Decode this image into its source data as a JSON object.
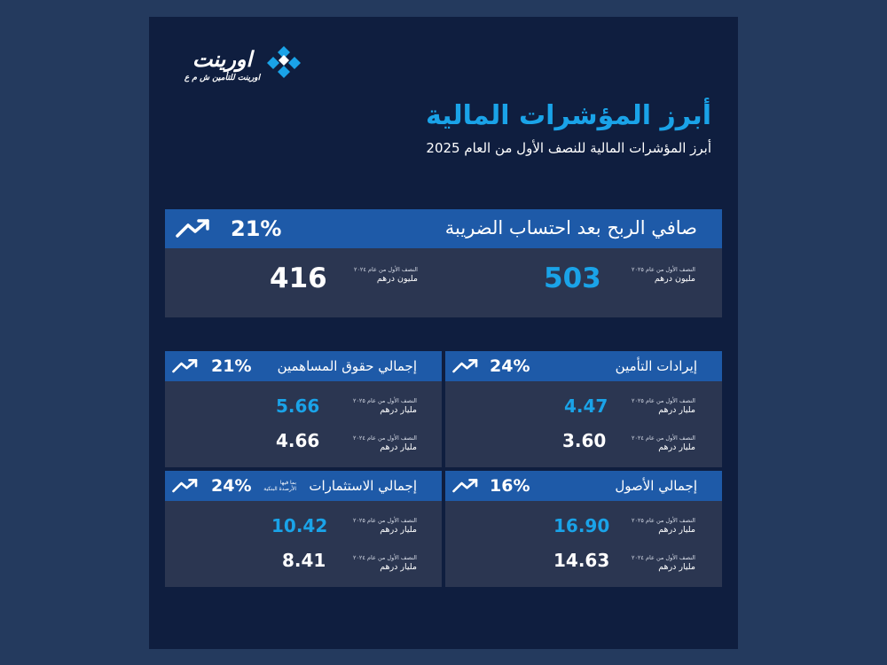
{
  "brand": {
    "name": "اورينت",
    "tagline": "اورينت للتأمين ش م ع",
    "colors": {
      "accent": "#1aa3e8",
      "header_bar": "#1e5aa8",
      "panel": "#2b3651",
      "background": "#0f1e3f"
    }
  },
  "title": "أبرز المؤشرات المالية",
  "subtitle": "أبرز المؤشرات المالية للنصف الأول من العام 2025",
  "net_profit": {
    "title": "صافي الربح بعد احتساب الضريبة",
    "change": "21%",
    "trend_icon": "trend-up-icon",
    "current": {
      "period": "النصف الأول من عام ٢٠٢٥",
      "unit": "مليون درهم",
      "value": "503"
    },
    "previous": {
      "period": "النصف الأول من عام ٢٠٢٤",
      "unit": "مليون درهم",
      "value": "416"
    }
  },
  "metrics": {
    "insurance_revenue": {
      "title": "إيرادات التأمين",
      "change": "24%",
      "current": {
        "period": "النصف الأول من عام ٢٠٢٥",
        "unit": "مليار درهم",
        "value": "4.47"
      },
      "previous": {
        "period": "النصف الأول من عام ٢٠٢٤",
        "unit": "مليار درهم",
        "value": "3.60"
      }
    },
    "shareholders_equity": {
      "title": "إجمالي حقوق المساهمين",
      "change": "21%",
      "current": {
        "period": "النصف الأول من عام ٢٠٢٥",
        "unit": "مليار درهم",
        "value": "5.66"
      },
      "previous": {
        "period": "النصف الأول من عام ٢٠٢٤",
        "unit": "مليار درهم",
        "value": "4.66"
      }
    },
    "total_assets": {
      "title": "إجمالي الأصول",
      "change": "16%",
      "current": {
        "period": "النصف الأول من عام ٢٠٢٥",
        "unit": "مليار درهم",
        "value": "16.90"
      },
      "previous": {
        "period": "النصف الأول من عام ٢٠٢٤",
        "unit": "مليار درهم",
        "value": "14.63"
      }
    },
    "total_investments": {
      "title": "إجمالي الاستثمارات",
      "note_line1": "بما فيها",
      "note_line2": "الأرصدة البنكية",
      "change": "24%",
      "current": {
        "period": "النصف الأول من عام ٢٠٢٥",
        "unit": "مليار درهم",
        "value": "10.42"
      },
      "previous": {
        "period": "النصف الأول من عام ٢٠٢٤",
        "unit": "مليار درهم",
        "value": "8.41"
      }
    }
  }
}
